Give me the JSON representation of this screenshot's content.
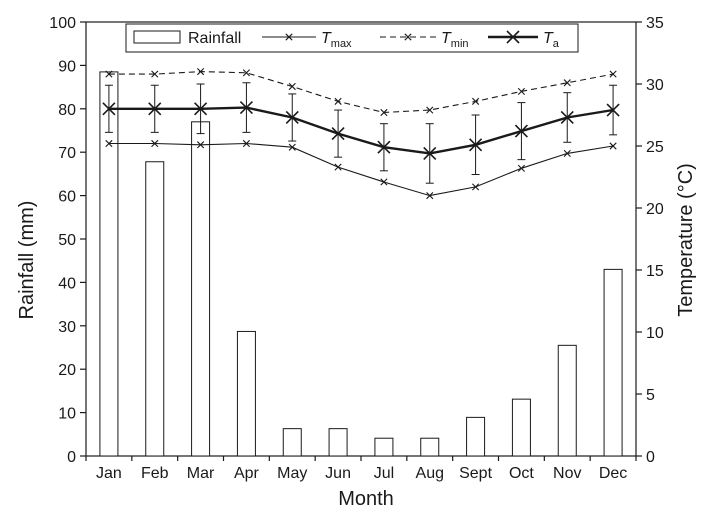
{
  "chart_data": {
    "type": "bar+line",
    "categories": [
      "Jan",
      "Feb",
      "Mar",
      "Apr",
      "May",
      "Jun",
      "Jul",
      "Aug",
      "Sept",
      "Oct",
      "Nov",
      "Dec"
    ],
    "xlabel": "Month",
    "ylabel_left": "Rainfall (mm)",
    "ylabel_right": "Temperature (°C)",
    "ylim_left": [
      0,
      100
    ],
    "ylim_right": [
      0,
      35
    ],
    "yticks_left": [
      0,
      10,
      20,
      30,
      40,
      50,
      60,
      70,
      80,
      90,
      100
    ],
    "yticks_right": [
      0,
      5,
      10,
      15,
      20,
      25,
      30,
      35
    ],
    "grid": false,
    "legend_position": "top",
    "bars": {
      "name": "Rainfall",
      "axis": "left",
      "values": [
        88.5,
        67.8,
        77.0,
        28.7,
        6.3,
        6.3,
        4.1,
        4.1,
        8.9,
        13.1,
        25.5,
        43.0
      ]
    },
    "series": [
      {
        "name": "T",
        "subscript": "max",
        "axis": "right",
        "style": "thin-solid-x",
        "values": [
          25.2,
          25.2,
          25.1,
          25.2,
          24.9,
          23.3,
          22.1,
          21.0,
          21.7,
          23.2,
          24.4,
          25.0
        ]
      },
      {
        "name": "T",
        "subscript": "min",
        "axis": "right",
        "style": "dashed-x",
        "values": [
          30.8,
          30.8,
          31.0,
          30.9,
          29.8,
          28.6,
          27.7,
          27.9,
          28.6,
          29.4,
          30.1,
          30.8
        ]
      },
      {
        "name": "T",
        "subscript": "a",
        "axis": "right",
        "style": "thick-solid-x",
        "values": [
          28.0,
          28.0,
          28.0,
          28.1,
          27.3,
          26.0,
          24.9,
          24.4,
          25.1,
          26.2,
          27.3,
          27.9
        ],
        "errors": [
          1.9,
          1.9,
          2.0,
          2.0,
          1.9,
          1.9,
          1.9,
          2.4,
          2.4,
          2.3,
          2.0,
          2.0
        ]
      }
    ],
    "colors": {
      "ink": "#1a1a1a",
      "bar_fill": "#ffffff"
    }
  }
}
